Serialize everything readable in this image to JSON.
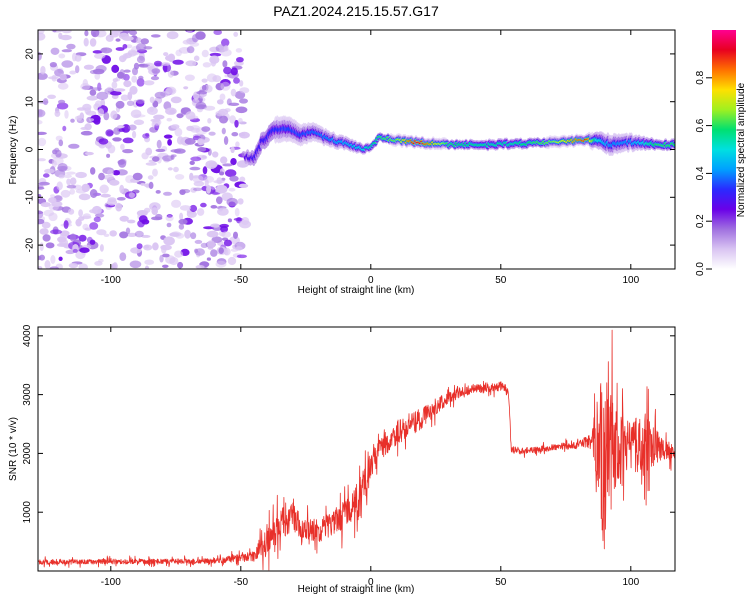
{
  "title": "PAZ1.2024.215.15.57.G17",
  "colors": {
    "snr_line": "#e8302a",
    "colormap": [
      "#ffffff",
      "#d9c4f2",
      "#a070e0",
      "#6a00e8",
      "#2a2aff",
      "#00a0ff",
      "#00e0e0",
      "#00e070",
      "#a0f020",
      "#ffe000",
      "#ff7000",
      "#e80020",
      "#ff0090"
    ]
  },
  "chart_data": [
    {
      "type": "heatmap",
      "xlabel": "Height of straight line (km)",
      "ylabel": "Frequency (Hz)",
      "xlim": [
        -128,
        117
      ],
      "ylim": [
        -25,
        25
      ],
      "xticks": [
        -100,
        -50,
        0,
        50,
        100
      ],
      "yticks": [
        -20,
        -10,
        0,
        10,
        20
      ],
      "colorbar": {
        "label": "Normalized spectral amplitude",
        "range": [
          0,
          1
        ],
        "ticks": [
          "0.0",
          "0.2",
          "0.4",
          "0.6",
          "0.8"
        ]
      },
      "noise_region": {
        "x_range": [
          -128,
          -48
        ],
        "freq_range": [
          -25,
          25
        ],
        "amplitude": 0.12
      },
      "ridge": [
        {
          "x": -48,
          "freq": -1.5,
          "amp": 0.22,
          "width": 2.2
        },
        {
          "x": -45,
          "freq": -2.0,
          "amp": 0.25,
          "width": 2.6
        },
        {
          "x": -42,
          "freq": 1.5,
          "amp": 0.25,
          "width": 3.0
        },
        {
          "x": -37,
          "freq": 4.0,
          "amp": 0.28,
          "width": 3.2
        },
        {
          "x": -32,
          "freq": 4.5,
          "amp": 0.3,
          "width": 3.0
        },
        {
          "x": -27,
          "freq": 3.0,
          "amp": 0.3,
          "width": 2.6
        },
        {
          "x": -22,
          "freq": 3.5,
          "amp": 0.32,
          "width": 2.2
        },
        {
          "x": -15,
          "freq": 2.0,
          "amp": 0.35,
          "width": 1.8
        },
        {
          "x": -8,
          "freq": 1.0,
          "amp": 0.4,
          "width": 1.5
        },
        {
          "x": -3,
          "freq": 0.2,
          "amp": 0.45,
          "width": 1.2
        },
        {
          "x": 0,
          "freq": 0.5,
          "amp": 0.5,
          "width": 1.0
        },
        {
          "x": 3,
          "freq": 2.5,
          "amp": 0.55,
          "width": 1.0
        },
        {
          "x": 10,
          "freq": 2.0,
          "amp": 0.6,
          "width": 1.0
        },
        {
          "x": 18,
          "freq": 1.5,
          "amp": 0.9,
          "width": 0.9
        },
        {
          "x": 30,
          "freq": 1.0,
          "amp": 0.55,
          "width": 1.0
        },
        {
          "x": 45,
          "freq": 1.0,
          "amp": 0.5,
          "width": 1.2
        },
        {
          "x": 55,
          "freq": 1.2,
          "amp": 0.5,
          "width": 1.2
        },
        {
          "x": 70,
          "freq": 1.5,
          "amp": 0.6,
          "width": 1.0
        },
        {
          "x": 83,
          "freq": 2.0,
          "amp": 0.85,
          "width": 0.9
        },
        {
          "x": 87,
          "freq": 2.0,
          "amp": 0.45,
          "width": 2.0
        },
        {
          "x": 92,
          "freq": 1.0,
          "amp": 0.35,
          "width": 2.5
        },
        {
          "x": 100,
          "freq": 1.5,
          "amp": 0.35,
          "width": 2.0
        },
        {
          "x": 110,
          "freq": 1.0,
          "amp": 0.55,
          "width": 1.2
        },
        {
          "x": 117,
          "freq": 1.0,
          "amp": 0.55,
          "width": 1.2
        }
      ]
    },
    {
      "type": "line",
      "xlabel": "Height of straight line (km)",
      "ylabel": "SNR (10 * v/v)",
      "xlim": [
        -128,
        117
      ],
      "ylim": [
        0,
        4150
      ],
      "xticks": [
        -100,
        -50,
        0,
        50,
        100
      ],
      "yticks": [
        1000,
        2000,
        3000,
        4000
      ],
      "series": [
        {
          "x": [
            -128,
            -100,
            -60,
            -45,
            -40,
            -35,
            -30,
            -25,
            -20,
            -15,
            -10,
            -5,
            0,
            5,
            10,
            15,
            20,
            25,
            30,
            35,
            40,
            45,
            50,
            53,
            54,
            60,
            70,
            80,
            85,
            88,
            90,
            92,
            95,
            100,
            105,
            110,
            117
          ],
          "y": [
            150,
            160,
            170,
            250,
            500,
            800,
            900,
            650,
            700,
            800,
            950,
            1250,
            1800,
            2150,
            2350,
            2500,
            2600,
            2800,
            2950,
            3050,
            3100,
            3120,
            3150,
            3050,
            2050,
            2050,
            2100,
            2150,
            2200,
            2250,
            1500,
            2000,
            2100,
            2150,
            2150,
            2100,
            2000
          ],
          "spread": [
            60,
            60,
            60,
            120,
            350,
            400,
            350,
            300,
            300,
            300,
            350,
            400,
            300,
            300,
            300,
            300,
            250,
            200,
            150,
            120,
            120,
            120,
            120,
            120,
            100,
            80,
            80,
            90,
            200,
            1500,
            2000,
            1500,
            800,
            600,
            800,
            400,
            150
          ]
        }
      ]
    }
  ]
}
